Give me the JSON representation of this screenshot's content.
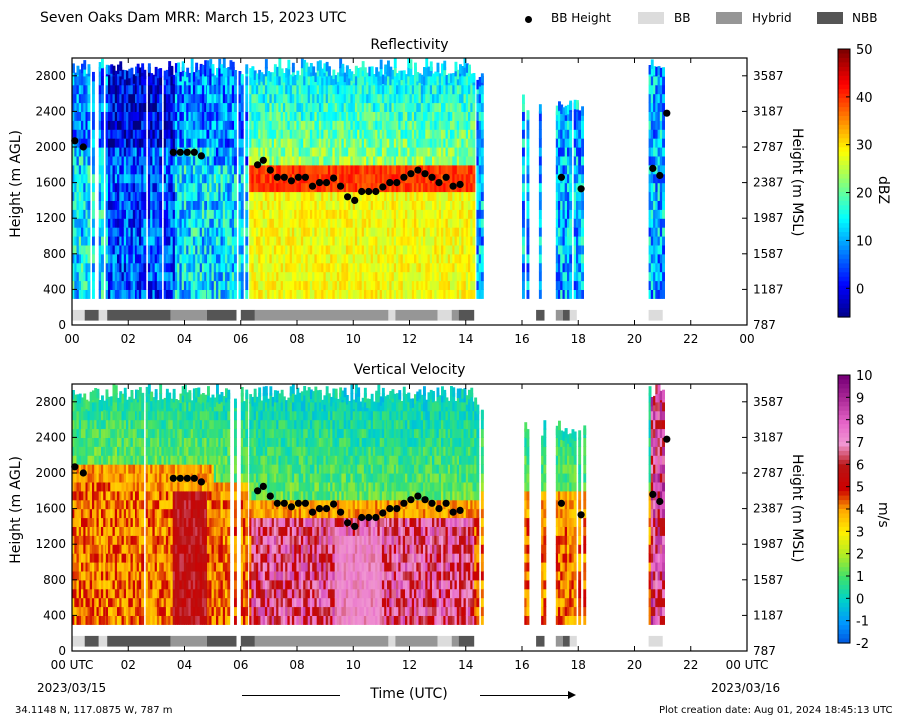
{
  "header": {
    "title": "Seven Oaks Dam MRR:  March 15, 2023 UTC",
    "legend": [
      {
        "label": "BB Height",
        "kind": "dot",
        "color": "#000000"
      },
      {
        "label": "BB",
        "kind": "box",
        "color": "#dcdcdc"
      },
      {
        "label": "Hybrid",
        "kind": "box",
        "color": "#969696"
      },
      {
        "label": "NBB",
        "kind": "box",
        "color": "#555555"
      }
    ]
  },
  "footer": {
    "xlabel": "Time (UTC)",
    "start_date": "2023/03/15",
    "end_date": "2023/03/16",
    "location": "34.1148 N, 117.0875 W, 787 m",
    "creation": "Plot creation date: Aug 01, 2024 18:45:13 UTC"
  },
  "chart_data": [
    {
      "type": "heatmap",
      "title": "Reflectivity",
      "ylabel": "Height (m AGL)",
      "ylabel_right": "Height (m MSL)",
      "colorbar_label": "dBZ",
      "colorbar_ticks": [
        "50",
        "40",
        "30",
        "20",
        "10",
        "0"
      ],
      "colorbar_range": [
        -6,
        50
      ],
      "xlim": [
        0,
        24
      ],
      "ylim": [
        0,
        3000
      ],
      "x_ticks": [
        "00",
        "02",
        "04",
        "06",
        "08",
        "10",
        "12",
        "14",
        "16",
        "18",
        "20",
        "22",
        "00"
      ],
      "y_ticks": [
        "0",
        "400",
        "800",
        "1200",
        "1600",
        "2000",
        "2400",
        "2800"
      ],
      "y_ticks_right": [
        "787",
        "1187",
        "1587",
        "1987",
        "2387",
        "2787",
        "3187",
        "3587"
      ],
      "colormap": "jet"
    },
    {
      "type": "heatmap",
      "title": "Vertical Velocity",
      "ylabel": "Height (m AGL)",
      "ylabel_right": "Height (m MSL)",
      "colorbar_label": "m/s",
      "colorbar_ticks": [
        "10",
        "9",
        "8",
        "7",
        "6",
        "5",
        "4",
        "3",
        "2",
        "1",
        "0",
        "-1",
        "-2"
      ],
      "colorbar_range": [
        -2,
        10
      ],
      "xlim": [
        0,
        24
      ],
      "ylim": [
        0,
        3000
      ],
      "x_ticks": [
        "00 UTC",
        "02",
        "04",
        "06",
        "08",
        "10",
        "12",
        "14",
        "16",
        "18",
        "20",
        "22",
        "00 UTC"
      ],
      "y_ticks": [
        "0",
        "400",
        "800",
        "1200",
        "1600",
        "2000",
        "2400",
        "2800"
      ],
      "y_ticks_right": [
        "787",
        "1187",
        "1587",
        "1987",
        "2387",
        "2787",
        "3187",
        "3587"
      ],
      "colormap": "velocity"
    }
  ],
  "bb_heights": [
    {
      "t": 0.1,
      "h": 2070
    },
    {
      "t": 0.4,
      "h": 2000
    },
    {
      "t": 3.6,
      "h": 1940
    },
    {
      "t": 3.85,
      "h": 1940
    },
    {
      "t": 4.1,
      "h": 1940
    },
    {
      "t": 4.35,
      "h": 1940
    },
    {
      "t": 4.6,
      "h": 1900
    },
    {
      "t": 6.6,
      "h": 1800
    },
    {
      "t": 6.8,
      "h": 1850
    },
    {
      "t": 7.05,
      "h": 1740
    },
    {
      "t": 7.3,
      "h": 1660
    },
    {
      "t": 7.55,
      "h": 1660
    },
    {
      "t": 7.8,
      "h": 1620
    },
    {
      "t": 8.05,
      "h": 1660
    },
    {
      "t": 8.3,
      "h": 1660
    },
    {
      "t": 8.55,
      "h": 1560
    },
    {
      "t": 8.8,
      "h": 1600
    },
    {
      "t": 9.05,
      "h": 1600
    },
    {
      "t": 9.3,
      "h": 1650
    },
    {
      "t": 9.55,
      "h": 1560
    },
    {
      "t": 9.8,
      "h": 1440
    },
    {
      "t": 10.05,
      "h": 1400
    },
    {
      "t": 10.3,
      "h": 1500
    },
    {
      "t": 10.55,
      "h": 1500
    },
    {
      "t": 10.8,
      "h": 1500
    },
    {
      "t": 11.05,
      "h": 1550
    },
    {
      "t": 11.3,
      "h": 1600
    },
    {
      "t": 11.55,
      "h": 1600
    },
    {
      "t": 11.8,
      "h": 1660
    },
    {
      "t": 12.05,
      "h": 1700
    },
    {
      "t": 12.3,
      "h": 1740
    },
    {
      "t": 12.55,
      "h": 1700
    },
    {
      "t": 12.8,
      "h": 1660
    },
    {
      "t": 13.05,
      "h": 1600
    },
    {
      "t": 13.3,
      "h": 1660
    },
    {
      "t": 13.55,
      "h": 1560
    },
    {
      "t": 13.8,
      "h": 1580
    },
    {
      "t": 17.4,
      "h": 1660
    },
    {
      "t": 18.1,
      "h": 1530
    },
    {
      "t": 20.65,
      "h": 1760
    },
    {
      "t": 20.9,
      "h": 1680
    },
    {
      "t": 21.15,
      "h": 2380
    }
  ],
  "bb_type_segments": [
    {
      "start": 0.0,
      "end": 0.45,
      "type": "BB"
    },
    {
      "start": 0.45,
      "end": 0.95,
      "type": "NBB"
    },
    {
      "start": 0.95,
      "end": 1.25,
      "type": "BB"
    },
    {
      "start": 1.25,
      "end": 3.5,
      "type": "NBB"
    },
    {
      "start": 3.5,
      "end": 4.8,
      "type": "Hybrid"
    },
    {
      "start": 4.8,
      "end": 5.85,
      "type": "NBB"
    },
    {
      "start": 6.0,
      "end": 6.5,
      "type": "NBB"
    },
    {
      "start": 6.5,
      "end": 11.25,
      "type": "Hybrid"
    },
    {
      "start": 11.25,
      "end": 11.5,
      "type": "BB"
    },
    {
      "start": 11.5,
      "end": 13.0,
      "type": "Hybrid"
    },
    {
      "start": 13.0,
      "end": 13.5,
      "type": "BB"
    },
    {
      "start": 13.5,
      "end": 13.75,
      "type": "Hybrid"
    },
    {
      "start": 13.75,
      "end": 14.3,
      "type": "NBB"
    },
    {
      "start": 16.5,
      "end": 16.8,
      "type": "NBB"
    },
    {
      "start": 17.2,
      "end": 17.45,
      "type": "Hybrid"
    },
    {
      "start": 17.45,
      "end": 17.7,
      "type": "NBB"
    },
    {
      "start": 17.7,
      "end": 17.95,
      "type": "BB"
    },
    {
      "start": 20.5,
      "end": 21.0,
      "type": "BB"
    }
  ]
}
